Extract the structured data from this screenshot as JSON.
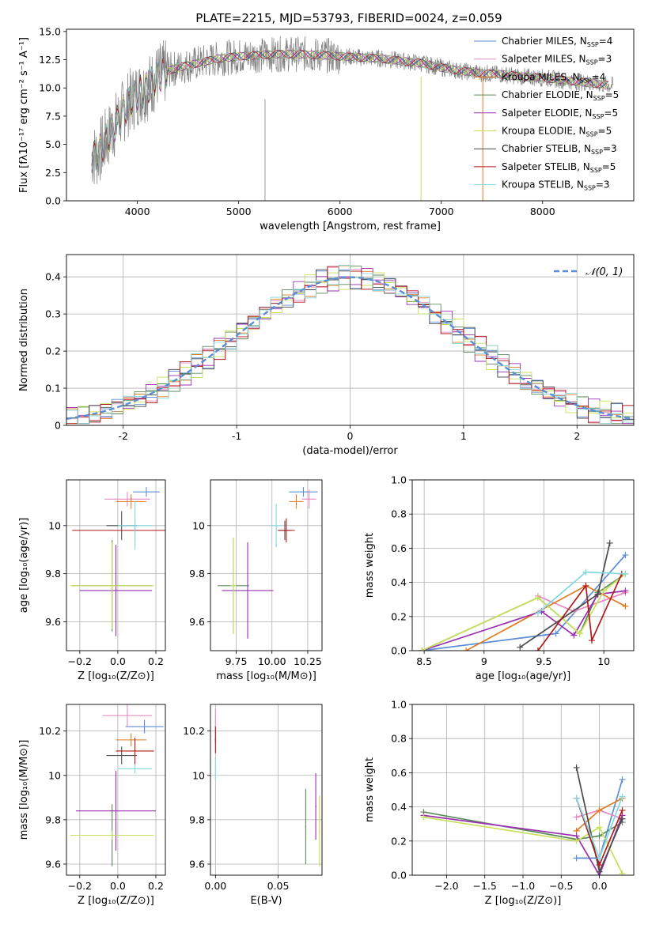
{
  "figure": {
    "title": "PLATE=2215, MJD=53793, FIBERID=0024, z=0.059"
  },
  "legend": [
    {
      "label": "Chabrier MILES, N",
      "sub": "SSP",
      "suffix": "=4",
      "color": "#5b8ed6"
    },
    {
      "label": "Salpeter MILES, N",
      "sub": "SSP",
      "suffix": "=3",
      "color": "#e88ac0"
    },
    {
      "label": "Kroupa MILES, N",
      "sub": "SSP",
      "suffix": "=4",
      "color": "#e07b22"
    },
    {
      "label": "Chabrier ELODIE, N",
      "sub": "SSP",
      "suffix": "=5",
      "color": "#5a8a5a"
    },
    {
      "label": "Salpeter ELODIE, N",
      "sub": "SSP",
      "suffix": "=5",
      "color": "#9b30b0"
    },
    {
      "label": "Kroupa ELODIE, N",
      "sub": "SSP",
      "suffix": "=5",
      "color": "#c8e05a"
    },
    {
      "label": "Chabrier STELIB, N",
      "sub": "SSP",
      "suffix": "=3",
      "color": "#4a4a4a"
    },
    {
      "label": "Salpeter STELIB, N",
      "sub": "SSP",
      "suffix": "=5",
      "color": "#b01a1a"
    },
    {
      "label": "Kroupa STELIB, N",
      "sub": "SSP",
      "suffix": "=3",
      "color": "#80d8e0"
    }
  ],
  "chart_data": [
    {
      "id": "spectrum",
      "type": "line",
      "xlabel": "wavelength [Angstrom, rest frame]",
      "ylabel": "Flux [fλ10⁻¹⁷ erg cm⁻² s⁻¹ A⁻¹]",
      "xlim": [
        3300,
        8900
      ],
      "ylim": [
        0,
        15.2
      ],
      "xticks": [
        4000,
        5000,
        6000,
        7000,
        8000
      ],
      "yticks": [
        0.0,
        2.5,
        5.0,
        7.5,
        10.0,
        12.5,
        15.0
      ],
      "x": [
        3600,
        3700,
        3800,
        3900,
        4000,
        4100,
        4200,
        4300,
        4400,
        4500,
        4600,
        4800,
        5000,
        5200,
        5400,
        5600,
        5800,
        6000,
        6200,
        6400,
        6600,
        6800,
        7000,
        7200,
        7400,
        7600,
        7800,
        8000,
        8200,
        8400,
        8600,
        8700
      ],
      "series": [
        {
          "name": "model",
          "values": [
            4.0,
            5.5,
            7.0,
            8.5,
            9.5,
            10.0,
            11.0,
            11.5,
            11.8,
            12.0,
            12.2,
            12.6,
            12.8,
            12.9,
            13.0,
            13.0,
            12.9,
            12.8,
            12.7,
            12.6,
            12.4,
            12.2,
            11.8,
            11.5,
            11.3,
            11.2,
            11.0,
            10.9,
            10.7,
            10.5,
            10.3,
            10.2
          ]
        }
      ]
    },
    {
      "id": "residuals",
      "type": "line",
      "xlabel": "(data-model)/error",
      "ylabel": "Normed distribution",
      "xlim": [
        -2.5,
        2.5
      ],
      "ylim": [
        0,
        0.46
      ],
      "xticks": [
        -2,
        -1,
        0,
        1,
        2
      ],
      "yticks": [
        0.0,
        0.1,
        0.2,
        0.3,
        0.4
      ],
      "legend": "𝒩(0, 1)",
      "x": [
        -2.5,
        -2.3,
        -2.1,
        -1.9,
        -1.7,
        -1.5,
        -1.3,
        -1.1,
        -0.9,
        -0.7,
        -0.5,
        -0.3,
        -0.1,
        0.1,
        0.3,
        0.5,
        0.7,
        0.9,
        1.1,
        1.3,
        1.5,
        1.7,
        1.9,
        2.1,
        2.3,
        2.5
      ],
      "series": [
        {
          "name": "hist",
          "values": [
            0.02,
            0.03,
            0.05,
            0.06,
            0.09,
            0.14,
            0.17,
            0.22,
            0.28,
            0.33,
            0.37,
            0.4,
            0.41,
            0.4,
            0.38,
            0.35,
            0.3,
            0.25,
            0.2,
            0.16,
            0.13,
            0.09,
            0.06,
            0.05,
            0.04,
            0.03
          ]
        }
      ]
    },
    {
      "id": "age-vs-Z",
      "type": "scatter",
      "xlabel": "Z [log₁₀(Z/Z⊙)]",
      "ylabel": "age  [log₁₀(age/yr)]",
      "xlim": [
        -0.27,
        0.25
      ],
      "ylim": [
        9.48,
        10.19
      ],
      "xticks": [
        -0.2,
        0.0,
        0.2
      ],
      "xticklabels": [
        "−0.2",
        "0.0",
        "0.2"
      ],
      "yticks": [
        9.6,
        9.8,
        10.0
      ],
      "points": [
        {
          "x": 0.15,
          "y": 10.14,
          "xerr": 0.07,
          "yerr": 0.02,
          "c": 0
        },
        {
          "x": 0.05,
          "y": 10.11,
          "xerr": 0.12,
          "yerr": 0.03,
          "c": 1
        },
        {
          "x": 0.07,
          "y": 10.1,
          "xerr": 0.08,
          "yerr": 0.03,
          "c": 2
        },
        {
          "x": -0.03,
          "y": 9.75,
          "xerr": 0.21,
          "yerr": 0.19,
          "c": 3
        },
        {
          "x": -0.01,
          "y": 9.73,
          "xerr": 0.19,
          "yerr": 0.19,
          "c": 4
        },
        {
          "x": -0.03,
          "y": 9.75,
          "xerr": 0.22,
          "yerr": 0.18,
          "c": 5
        },
        {
          "x": 0.02,
          "y": 10.0,
          "xerr": 0.08,
          "yerr": 0.06,
          "c": 6
        },
        {
          "x": 0.09,
          "y": 9.98,
          "xerr": 0.33,
          "yerr": 0.05,
          "c": 7
        },
        {
          "x": 0.09,
          "y": 10.0,
          "xerr": 0.09,
          "yerr": 0.1,
          "c": 8
        }
      ]
    },
    {
      "id": "age-vs-mass",
      "type": "scatter",
      "xlabel": "mass [log₁₀(M/M⊙)]",
      "ylabel": "",
      "xlim": [
        9.57,
        10.35
      ],
      "ylim": [
        9.48,
        10.19
      ],
      "xticks": [
        9.75,
        10.0,
        10.25
      ],
      "xticklabels": [
        "9.75",
        "10.00",
        "10.25"
      ],
      "yticks": [
        9.6,
        9.8,
        10.0
      ],
      "points": [
        {
          "x": 10.22,
          "y": 10.14,
          "xerr": 0.1,
          "yerr": 0.02,
          "c": 0
        },
        {
          "x": 10.26,
          "y": 10.11,
          "xerr": 0.05,
          "yerr": 0.04,
          "c": 1
        },
        {
          "x": 10.17,
          "y": 10.1,
          "xerr": 0.05,
          "yerr": 0.03,
          "c": 2
        },
        {
          "x": 9.73,
          "y": 9.75,
          "xerr": 0.11,
          "yerr": 0.2,
          "c": 3
        },
        {
          "x": 9.83,
          "y": 9.73,
          "xerr": 0.18,
          "yerr": 0.2,
          "c": 4
        },
        {
          "x": 9.73,
          "y": 9.75,
          "xerr": 0.02,
          "yerr": 0.2,
          "c": 5
        },
        {
          "x": 10.09,
          "y": 9.98,
          "xerr": 0.04,
          "yerr": 0.04,
          "c": 6
        },
        {
          "x": 10.1,
          "y": 9.98,
          "xerr": 0.06,
          "yerr": 0.05,
          "c": 7
        },
        {
          "x": 10.03,
          "y": 10.0,
          "xerr": 0.04,
          "yerr": 0.09,
          "c": 8
        }
      ]
    },
    {
      "id": "mass-weight-vs-age",
      "type": "line",
      "xlabel": "age  [log₁₀(age/yr)]",
      "ylabel": "mass weight",
      "xlim": [
        8.4,
        10.25
      ],
      "ylim": [
        0,
        1.0
      ],
      "xticks": [
        8.5,
        9.0,
        9.5,
        10.0
      ],
      "yticks": [
        0.0,
        0.2,
        0.4,
        0.6,
        0.8,
        1.0
      ],
      "series": [
        {
          "name": "",
          "c": 0,
          "x": [
            8.48,
            9.6,
            10.18
          ],
          "values": [
            0.0,
            0.1,
            0.56
          ]
        },
        {
          "name": "",
          "c": 1,
          "x": [
            9.45,
            9.75,
            10.18
          ],
          "values": [
            0.32,
            0.23,
            0.34
          ]
        },
        {
          "name": "",
          "c": 2,
          "x": [
            8.85,
            9.85,
            10.18
          ],
          "values": [
            0.0,
            0.38,
            0.26
          ]
        },
        {
          "name": "",
          "c": 3,
          "x": [
            8.48,
            9.45,
            9.8,
            9.95,
            10.18
          ],
          "values": [
            0.0,
            0.31,
            0.1,
            0.34,
            0.45
          ]
        },
        {
          "name": "",
          "c": 4,
          "x": [
            8.48,
            9.48,
            9.75,
            9.95,
            10.18
          ],
          "values": [
            0.0,
            0.23,
            0.09,
            0.33,
            0.35
          ]
        },
        {
          "name": "",
          "c": 5,
          "x": [
            8.48,
            9.45,
            9.8,
            10.0,
            10.18
          ],
          "values": [
            0.0,
            0.31,
            0.1,
            0.35,
            0.45
          ]
        },
        {
          "name": "",
          "c": 6,
          "x": [
            9.3,
            9.95,
            10.05
          ],
          "values": [
            0.02,
            0.33,
            0.63
          ]
        },
        {
          "name": "",
          "c": 7,
          "x": [
            9.45,
            9.85,
            9.9,
            10.15
          ],
          "values": [
            0.0,
            0.38,
            0.06,
            0.45
          ]
        },
        {
          "name": "",
          "c": 8,
          "x": [
            9.45,
            9.85,
            10.18
          ],
          "values": [
            0.22,
            0.46,
            0.45
          ]
        }
      ]
    },
    {
      "id": "mass-vs-Z",
      "type": "scatter",
      "xlabel": "Z [log₁₀(Z/Z⊙)]",
      "ylabel": "mass [log₁₀(M/M⊙)]",
      "xlim": [
        -0.27,
        0.25
      ],
      "ylim": [
        9.55,
        10.32
      ],
      "xticks": [
        -0.2,
        0.0,
        0.2
      ],
      "xticklabels": [
        "−0.2",
        "0.0",
        "0.2"
      ],
      "yticks": [
        9.6,
        9.8,
        10.0,
        10.2
      ],
      "points": [
        {
          "x": 0.14,
          "y": 10.22,
          "xerr": 0.1,
          "yerr": 0.03,
          "c": 0
        },
        {
          "x": 0.05,
          "y": 10.27,
          "xerr": 0.13,
          "yerr": 0.05,
          "c": 1
        },
        {
          "x": 0.07,
          "y": 10.16,
          "xerr": 0.08,
          "yerr": 0.03,
          "c": 2
        },
        {
          "x": -0.03,
          "y": 9.73,
          "xerr": 0.21,
          "yerr": 0.14,
          "c": 3
        },
        {
          "x": -0.01,
          "y": 9.84,
          "xerr": 0.21,
          "yerr": 0.18,
          "c": 4
        },
        {
          "x": -0.03,
          "y": 9.73,
          "xerr": 0.22,
          "yerr": 0.02,
          "c": 5
        },
        {
          "x": 0.02,
          "y": 10.09,
          "xerr": 0.08,
          "yerr": 0.04,
          "c": 6
        },
        {
          "x": 0.09,
          "y": 10.11,
          "xerr": 0.1,
          "yerr": 0.06,
          "c": 7
        },
        {
          "x": 0.09,
          "y": 10.03,
          "xerr": 0.09,
          "yerr": 0.02,
          "c": 8
        }
      ]
    },
    {
      "id": "mass-vs-EBV",
      "type": "scatter",
      "xlabel": "E(B-V)",
      "ylabel": "",
      "xlim": [
        -0.004,
        0.085
      ],
      "ylim": [
        9.55,
        10.32
      ],
      "xticks": [
        0.0,
        0.05
      ],
      "xticklabels": [
        "0.00",
        "0.05"
      ],
      "yticks": [
        9.6,
        9.8,
        10.0,
        10.2
      ],
      "points": [
        {
          "x": 0.0,
          "y": 10.22,
          "xerr": 0.0005,
          "yerr": 0.08,
          "c": 1
        },
        {
          "x": 0.0,
          "y": 10.16,
          "xerr": 0.0005,
          "yerr": 0.06,
          "c": 7
        },
        {
          "x": 0.0,
          "y": 10.03,
          "xerr": 0.0005,
          "yerr": 0.05,
          "c": 8
        },
        {
          "x": 0.072,
          "y": 9.77,
          "xerr": 0.0005,
          "yerr": 0.17,
          "c": 3
        },
        {
          "x": 0.08,
          "y": 9.86,
          "xerr": 0.0005,
          "yerr": 0.15,
          "c": 4
        },
        {
          "x": 0.083,
          "y": 9.75,
          "xerr": 0.0005,
          "yerr": 0.16,
          "c": 5
        }
      ]
    },
    {
      "id": "mass-weight-vs-Z",
      "type": "line",
      "xlabel": "Z [log₁₀(Z/Z⊙)]",
      "ylabel": "mass weight",
      "xlim": [
        -2.45,
        0.45
      ],
      "ylim": [
        0,
        1.0
      ],
      "xticks": [
        -2.0,
        -1.5,
        -1.0,
        -0.5,
        0.0
      ],
      "xticklabels": [
        "−2.0",
        "−1.5",
        "−1.0",
        "−0.5",
        "0.0"
      ],
      "yticks": [
        0.0,
        0.2,
        0.4,
        0.6,
        0.8,
        1.0
      ],
      "series": [
        {
          "name": "",
          "c": 0,
          "x": [
            -0.3,
            0.0,
            0.3
          ],
          "values": [
            0.1,
            0.1,
            0.56
          ]
        },
        {
          "name": "",
          "c": 1,
          "x": [
            -0.3,
            0.0,
            0.3
          ],
          "values": [
            0.34,
            0.38,
            0.33
          ]
        },
        {
          "name": "",
          "c": 2,
          "x": [
            -0.3,
            0.0,
            0.3
          ],
          "values": [
            0.26,
            0.38,
            0.45
          ]
        },
        {
          "name": "",
          "c": 3,
          "x": [
            -2.3,
            -0.3,
            0.0,
            0.3
          ],
          "values": [
            0.37,
            0.21,
            0.23,
            0.31
          ]
        },
        {
          "name": "",
          "c": 4,
          "x": [
            -2.3,
            -0.3,
            0.0,
            0.3
          ],
          "values": [
            0.35,
            0.23,
            0.0,
            0.35
          ]
        },
        {
          "name": "",
          "c": 5,
          "x": [
            -2.3,
            -0.3,
            0.0,
            0.3
          ],
          "values": [
            0.34,
            0.2,
            0.28,
            0.01
          ]
        },
        {
          "name": "",
          "c": 6,
          "x": [
            -0.3,
            0.0,
            0.3
          ],
          "values": [
            0.63,
            0.02,
            0.33
          ]
        },
        {
          "name": "",
          "c": 7,
          "x": [
            -0.3,
            0.0,
            0.3
          ],
          "values": [
            0.45,
            0.06,
            0.38
          ]
        },
        {
          "name": "",
          "c": 8,
          "x": [
            -0.3,
            0.0,
            0.3
          ],
          "values": [
            0.45,
            0.1,
            0.46
          ]
        }
      ]
    }
  ]
}
